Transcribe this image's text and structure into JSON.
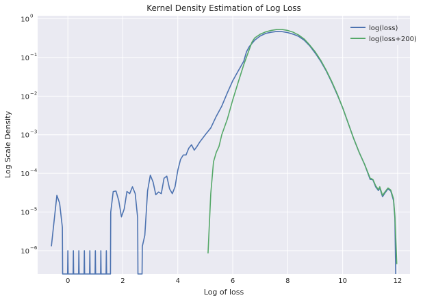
{
  "chart_data": {
    "type": "line",
    "title": "Kernel Density Estimation of Log Loss",
    "xlabel": "Log of loss",
    "ylabel": "Log Scale Density",
    "xlim": [
      -1.1,
      12.45
    ],
    "ylim": [
      2.5e-07,
      1.2
    ],
    "yscale": "log",
    "grid": true,
    "legend_position": "top-right",
    "x_ticks": [
      0,
      2,
      4,
      6,
      8,
      10,
      12
    ],
    "x_tick_labels": [
      "0",
      "2",
      "4",
      "6",
      "8",
      "10",
      "12"
    ],
    "y_ticks": [
      1e-06,
      1e-05,
      0.0001,
      0.001,
      0.01,
      0.1,
      1
    ],
    "y_tick_labels": [
      {
        "base": "10",
        "exp": "−6"
      },
      {
        "base": "10",
        "exp": "−5"
      },
      {
        "base": "10",
        "exp": "−4"
      },
      {
        "base": "10",
        "exp": "−3"
      },
      {
        "base": "10",
        "exp": "−2"
      },
      {
        "base": "10",
        "exp": "−1"
      },
      {
        "base": "10",
        "exp": "0"
      }
    ],
    "series": [
      {
        "name": "log(loss)",
        "color": "#4c72b0",
        "points": [
          [
            -0.6,
            1.3e-06
          ],
          [
            -0.5,
            6e-06
          ],
          [
            -0.4,
            2.7e-05
          ],
          [
            -0.3,
            1.7e-05
          ],
          [
            -0.2,
            4e-06
          ],
          [
            -0.19,
            1e-08
          ],
          [
            -0.01,
            1e-08
          ],
          [
            0.0,
            1e-06
          ],
          [
            0.01,
            1e-08
          ],
          [
            0.19,
            1e-08
          ],
          [
            0.2,
            1e-06
          ],
          [
            0.21,
            1e-08
          ],
          [
            0.39,
            1e-08
          ],
          [
            0.4,
            1e-06
          ],
          [
            0.41,
            1e-08
          ],
          [
            0.59,
            1e-08
          ],
          [
            0.6,
            1e-06
          ],
          [
            0.61,
            1e-08
          ],
          [
            0.79,
            1e-08
          ],
          [
            0.8,
            1e-06
          ],
          [
            0.81,
            1e-08
          ],
          [
            0.99,
            1e-08
          ],
          [
            1.0,
            1e-06
          ],
          [
            1.01,
            1e-08
          ],
          [
            1.19,
            1e-08
          ],
          [
            1.2,
            1e-06
          ],
          [
            1.21,
            1e-08
          ],
          [
            1.39,
            1e-08
          ],
          [
            1.4,
            1e-06
          ],
          [
            1.41,
            1e-08
          ],
          [
            1.55,
            1e-08
          ],
          [
            1.56,
            1e-05
          ],
          [
            1.65,
            3.4e-05
          ],
          [
            1.75,
            3.5e-05
          ],
          [
            1.85,
            2e-05
          ],
          [
            1.95,
            7.5e-06
          ],
          [
            2.05,
            1.2e-05
          ],
          [
            2.15,
            3.4e-05
          ],
          [
            2.25,
            3e-05
          ],
          [
            2.35,
            4.5e-05
          ],
          [
            2.45,
            3e-05
          ],
          [
            2.54,
            7e-06
          ],
          [
            2.55,
            1e-08
          ],
          [
            2.7,
            1e-08
          ],
          [
            2.71,
            1.3e-06
          ],
          [
            2.8,
            2.5e-06
          ],
          [
            2.9,
            3.5e-05
          ],
          [
            3.0,
            9e-05
          ],
          [
            3.1,
            6e-05
          ],
          [
            3.2,
            2.8e-05
          ],
          [
            3.3,
            3.3e-05
          ],
          [
            3.4,
            3e-05
          ],
          [
            3.5,
            7.5e-05
          ],
          [
            3.6,
            8.5e-05
          ],
          [
            3.7,
            4e-05
          ],
          [
            3.8,
            3e-05
          ],
          [
            3.9,
            4.5e-05
          ],
          [
            4.0,
            0.00012
          ],
          [
            4.1,
            0.00023
          ],
          [
            4.2,
            0.0003
          ],
          [
            4.3,
            0.0003
          ],
          [
            4.4,
            0.00045
          ],
          [
            4.5,
            0.00055
          ],
          [
            4.6,
            0.0004
          ],
          [
            4.7,
            0.0005
          ],
          [
            4.8,
            0.00065
          ],
          [
            5.0,
            0.001
          ],
          [
            5.2,
            0.0015
          ],
          [
            5.4,
            0.003
          ],
          [
            5.6,
            0.0055
          ],
          [
            5.8,
            0.012
          ],
          [
            6.0,
            0.025
          ],
          [
            6.2,
            0.045
          ],
          [
            6.4,
            0.08
          ],
          [
            6.5,
            0.14
          ],
          [
            6.6,
            0.19
          ],
          [
            6.8,
            0.28
          ],
          [
            7.0,
            0.36
          ],
          [
            7.2,
            0.42
          ],
          [
            7.4,
            0.45
          ],
          [
            7.6,
            0.47
          ],
          [
            7.8,
            0.465
          ],
          [
            8.0,
            0.44
          ],
          [
            8.2,
            0.4
          ],
          [
            8.4,
            0.35
          ],
          [
            8.6,
            0.28
          ],
          [
            8.8,
            0.2
          ],
          [
            9.0,
            0.13
          ],
          [
            9.2,
            0.08
          ],
          [
            9.4,
            0.045
          ],
          [
            9.6,
            0.023
          ],
          [
            9.8,
            0.011
          ],
          [
            10.0,
            0.005
          ],
          [
            10.2,
            0.002
          ],
          [
            10.4,
            0.0008
          ],
          [
            10.6,
            0.00035
          ],
          [
            10.8,
            0.00017
          ],
          [
            11.0,
            7e-05
          ],
          [
            11.1,
            6.8e-05
          ],
          [
            11.2,
            4.5e-05
          ],
          [
            11.3,
            3.6e-05
          ],
          [
            11.35,
            4.2e-05
          ],
          [
            11.45,
            2.5e-05
          ],
          [
            11.55,
            3.2e-05
          ],
          [
            11.65,
            4e-05
          ],
          [
            11.75,
            3.5e-05
          ],
          [
            11.85,
            2e-05
          ],
          [
            11.9,
            7e-06
          ],
          [
            11.93,
            1e-08
          ]
        ]
      },
      {
        "name": "log(loss+200)",
        "color": "#55a868",
        "points": [
          [
            5.1,
            8.5e-07
          ],
          [
            5.2,
            3e-05
          ],
          [
            5.3,
            0.0002
          ],
          [
            5.4,
            0.00035
          ],
          [
            5.5,
            0.0005
          ],
          [
            5.6,
            0.001
          ],
          [
            5.8,
            0.0025
          ],
          [
            6.0,
            0.008
          ],
          [
            6.2,
            0.023
          ],
          [
            6.4,
            0.065
          ],
          [
            6.6,
            0.16
          ],
          [
            6.7,
            0.25
          ],
          [
            6.8,
            0.32
          ],
          [
            7.0,
            0.4
          ],
          [
            7.2,
            0.46
          ],
          [
            7.4,
            0.5
          ],
          [
            7.6,
            0.53
          ],
          [
            7.8,
            0.53
          ],
          [
            8.0,
            0.5
          ],
          [
            8.2,
            0.45
          ],
          [
            8.4,
            0.38
          ],
          [
            8.6,
            0.3
          ],
          [
            8.8,
            0.21
          ],
          [
            9.0,
            0.14
          ],
          [
            9.2,
            0.085
          ],
          [
            9.4,
            0.047
          ],
          [
            9.6,
            0.024
          ],
          [
            9.8,
            0.0115
          ],
          [
            10.0,
            0.005
          ],
          [
            10.2,
            0.002
          ],
          [
            10.4,
            0.0008
          ],
          [
            10.6,
            0.00035
          ],
          [
            10.8,
            0.00017
          ],
          [
            11.0,
            7.5e-05
          ],
          [
            11.1,
            7e-05
          ],
          [
            11.2,
            4.8e-05
          ],
          [
            11.3,
            3.8e-05
          ],
          [
            11.35,
            4.5e-05
          ],
          [
            11.45,
            2.7e-05
          ],
          [
            11.55,
            3.4e-05
          ],
          [
            11.65,
            4.2e-05
          ],
          [
            11.75,
            3.7e-05
          ],
          [
            11.85,
            2.2e-05
          ],
          [
            11.9,
            8e-06
          ],
          [
            11.97,
            4.5e-07
          ]
        ]
      }
    ]
  }
}
